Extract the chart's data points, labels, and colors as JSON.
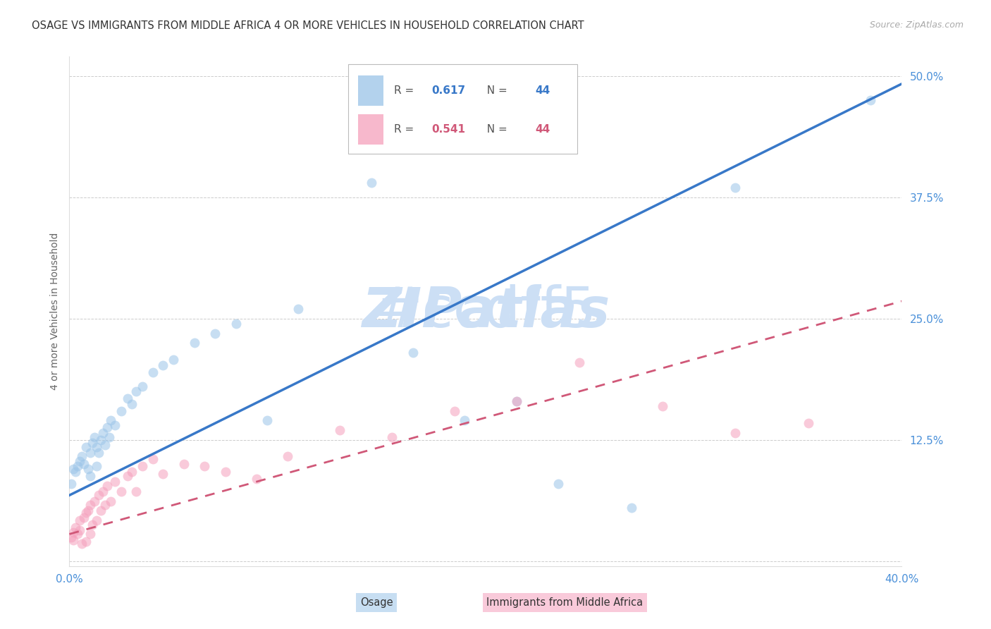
{
  "title": "OSAGE VS IMMIGRANTS FROM MIDDLE AFRICA 4 OR MORE VEHICLES IN HOUSEHOLD CORRELATION CHART",
  "source": "Source: ZipAtlas.com",
  "ylabel": "4 or more Vehicles in Household",
  "xlim": [
    0.0,
    0.4
  ],
  "ylim": [
    -0.005,
    0.52
  ],
  "xtick_vals": [
    0.0,
    0.1,
    0.2,
    0.3,
    0.4
  ],
  "xticklabels": [
    "0.0%",
    "",
    "",
    "",
    "40.0%"
  ],
  "ytick_vals": [
    0.0,
    0.125,
    0.25,
    0.375,
    0.5
  ],
  "yticklabels": [
    "",
    "12.5%",
    "25.0%",
    "37.5%",
    "50.0%"
  ],
  "osage_R": "0.617",
  "osage_N": "44",
  "immig_R": "0.541",
  "immig_N": "44",
  "osage_scatter_color": "#9ac4e8",
  "immig_scatter_color": "#f5a0bc",
  "osage_line_color": "#3878c8",
  "immig_line_color": "#d05878",
  "watermark_color": "#ccdff5",
  "tick_color": "#4a90d9",
  "grid_color": "#cccccc",
  "osage_line_intercept": 0.068,
  "osage_line_slope": 1.06,
  "immig_line_intercept": 0.028,
  "immig_line_slope": 0.6,
  "osage_x": [
    0.001,
    0.002,
    0.003,
    0.004,
    0.005,
    0.006,
    0.007,
    0.008,
    0.009,
    0.01,
    0.01,
    0.011,
    0.012,
    0.013,
    0.013,
    0.014,
    0.015,
    0.016,
    0.017,
    0.018,
    0.019,
    0.02,
    0.022,
    0.025,
    0.028,
    0.03,
    0.032,
    0.035,
    0.04,
    0.045,
    0.05,
    0.06,
    0.07,
    0.08,
    0.095,
    0.11,
    0.145,
    0.165,
    0.19,
    0.215,
    0.235,
    0.27,
    0.32,
    0.385
  ],
  "osage_y": [
    0.08,
    0.095,
    0.092,
    0.098,
    0.103,
    0.108,
    0.1,
    0.118,
    0.095,
    0.112,
    0.088,
    0.122,
    0.128,
    0.118,
    0.098,
    0.112,
    0.125,
    0.132,
    0.12,
    0.138,
    0.128,
    0.145,
    0.14,
    0.155,
    0.168,
    0.162,
    0.175,
    0.18,
    0.195,
    0.202,
    0.208,
    0.225,
    0.235,
    0.245,
    0.145,
    0.26,
    0.39,
    0.215,
    0.145,
    0.165,
    0.08,
    0.055,
    0.385,
    0.475
  ],
  "immig_x": [
    0.001,
    0.002,
    0.002,
    0.003,
    0.004,
    0.005,
    0.005,
    0.006,
    0.007,
    0.008,
    0.008,
    0.009,
    0.01,
    0.01,
    0.011,
    0.012,
    0.013,
    0.014,
    0.015,
    0.016,
    0.017,
    0.018,
    0.02,
    0.022,
    0.025,
    0.028,
    0.03,
    0.032,
    0.035,
    0.04,
    0.045,
    0.055,
    0.065,
    0.075,
    0.09,
    0.105,
    0.13,
    0.155,
    0.185,
    0.215,
    0.245,
    0.285,
    0.32,
    0.355
  ],
  "immig_y": [
    0.025,
    0.03,
    0.022,
    0.035,
    0.028,
    0.032,
    0.042,
    0.018,
    0.045,
    0.02,
    0.05,
    0.052,
    0.028,
    0.058,
    0.038,
    0.062,
    0.042,
    0.068,
    0.052,
    0.072,
    0.058,
    0.078,
    0.062,
    0.082,
    0.072,
    0.088,
    0.092,
    0.072,
    0.098,
    0.105,
    0.09,
    0.1,
    0.098,
    0.092,
    0.085,
    0.108,
    0.135,
    0.128,
    0.155,
    0.165,
    0.205,
    0.16,
    0.132,
    0.142
  ]
}
